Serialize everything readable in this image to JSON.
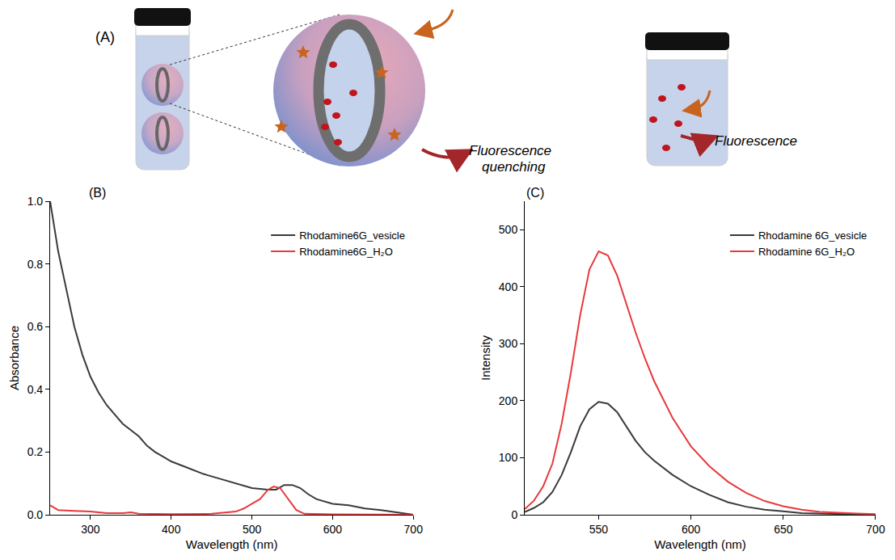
{
  "schematic": {
    "label": "(A)",
    "quenching_text": "Fluorescence quenching",
    "emission_text": "Fluorescence"
  },
  "chart_data": [
    {
      "type": "line",
      "title": "(B)",
      "x_label": "Wavelength (nm)",
      "y_label": "Absorbance",
      "xlim": [
        250,
        700
      ],
      "xticks": [
        300,
        400,
        500,
        600,
        700
      ],
      "ylim": [
        0,
        1.0
      ],
      "yticks": [
        {
          "value": 0,
          "label": "0.0"
        },
        0.2,
        0.4,
        0.6,
        0.8,
        {
          "value": 1.0,
          "label": "1.0"
        }
      ],
      "grid": false,
      "legend": "upper right",
      "series": [
        {
          "name": "Rhodamine6G_vesicle",
          "color": "#3a3a3a",
          "x": [
            250,
            260,
            270,
            280,
            290,
            300,
            310,
            320,
            330,
            340,
            350,
            360,
            370,
            380,
            390,
            400,
            420,
            440,
            460,
            480,
            500,
            520,
            530,
            540,
            550,
            560,
            570,
            580,
            600,
            620,
            640,
            660,
            680,
            700
          ],
          "values": [
            1.0,
            0.84,
            0.72,
            0.6,
            0.51,
            0.44,
            0.39,
            0.35,
            0.32,
            0.29,
            0.27,
            0.25,
            0.22,
            0.2,
            0.185,
            0.17,
            0.15,
            0.13,
            0.115,
            0.1,
            0.085,
            0.08,
            0.08,
            0.095,
            0.095,
            0.085,
            0.065,
            0.05,
            0.035,
            0.03,
            0.02,
            0.015,
            0.008,
            0.0
          ]
        },
        {
          "name": "Rhodamine6G_H₂O",
          "color": "#e8393b",
          "x": [
            250,
            260,
            280,
            300,
            320,
            340,
            350,
            360,
            400,
            450,
            480,
            490,
            500,
            510,
            520,
            527,
            535,
            545,
            555,
            565,
            600,
            700
          ],
          "values": [
            0.03,
            0.015,
            0.012,
            0.01,
            0.005,
            0.005,
            0.008,
            0.003,
            0.002,
            0.003,
            0.01,
            0.02,
            0.035,
            0.05,
            0.08,
            0.09,
            0.085,
            0.05,
            0.015,
            0.003,
            0.001,
            0.0
          ]
        }
      ]
    },
    {
      "type": "line",
      "title": "(C)",
      "x_label": "Wavelength (nm)",
      "y_label": "Intensity",
      "xlim": [
        510,
        700
      ],
      "xticks": [
        550,
        600,
        650,
        700
      ],
      "ylim": [
        0,
        550
      ],
      "yticks": [
        0,
        100,
        200,
        300,
        400,
        500
      ],
      "grid": false,
      "legend": "upper right",
      "series": [
        {
          "name": "Rhodamine 6G_vesicle",
          "color": "#3a3a3a",
          "x": [
            510,
            515,
            520,
            525,
            530,
            535,
            540,
            545,
            550,
            555,
            560,
            565,
            570,
            575,
            580,
            590,
            600,
            610,
            620,
            630,
            640,
            650,
            660,
            670,
            680,
            700
          ],
          "values": [
            5,
            12,
            22,
            40,
            70,
            110,
            155,
            185,
            198,
            195,
            180,
            155,
            130,
            110,
            95,
            70,
            50,
            35,
            22,
            14,
            9,
            6,
            3,
            2,
            1,
            0
          ]
        },
        {
          "name": "Rhodamine 6G_H₂O",
          "color": "#e8393b",
          "x": [
            510,
            515,
            520,
            525,
            530,
            535,
            540,
            545,
            550,
            555,
            560,
            565,
            570,
            575,
            580,
            590,
            600,
            610,
            620,
            630,
            640,
            650,
            660,
            670,
            680,
            690,
            700
          ],
          "values": [
            10,
            25,
            50,
            90,
            160,
            250,
            350,
            430,
            462,
            455,
            420,
            370,
            320,
            275,
            235,
            170,
            120,
            85,
            58,
            38,
            24,
            15,
            9,
            5,
            3,
            2,
            1
          ]
        }
      ]
    }
  ]
}
